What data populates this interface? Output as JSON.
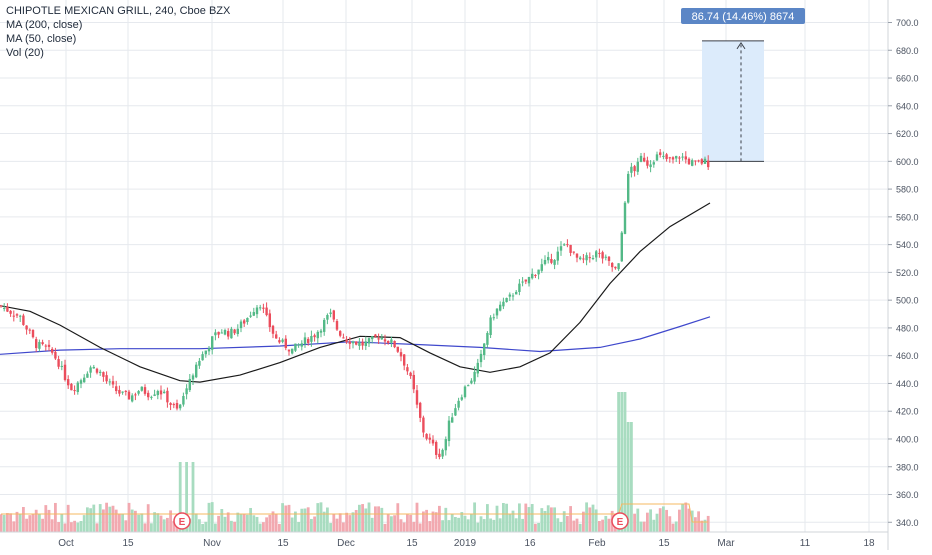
{
  "legend": {
    "title": "CHIPOTLE MEXICAN GRILL, 240, Cboe BZX",
    "ma200": "MA (200, close)",
    "ma50": "MA (50, close)",
    "vol": "Vol (20)"
  },
  "measure_label": "86.74 (14.46%) 8674",
  "earnings_marker": "E",
  "colors": {
    "up": "#53b987",
    "down": "#eb4d5c",
    "vol_up": "#a8dcc0",
    "vol_down": "#f2a9b0",
    "ma200": "#3f48cc",
    "ma50": "#1a1a1a",
    "vol_ma": "#f4b860",
    "measure_fill": "#dcebfb",
    "measure_label_bg": "#5b86c6",
    "grid": "#e6e9ee",
    "axis_text": "#4a5260"
  },
  "chart_data": {
    "type": "candlestick",
    "symbol": "CHIPOTLE MEXICAN GRILL",
    "interval": "240",
    "exchange": "Cboe BZX",
    "y_axis": {
      "ticks": [
        340,
        360,
        380,
        400,
        420,
        440,
        460,
        480,
        500,
        520,
        540,
        560,
        580,
        600,
        620,
        640,
        660,
        680,
        700
      ],
      "ylim": [
        333,
        709
      ]
    },
    "x_axis": {
      "ticks": [
        "Oct",
        "15",
        "Nov",
        "15",
        "Dec",
        "15",
        "2019",
        "16",
        "Feb",
        "15",
        "Mar",
        "11",
        "18"
      ]
    },
    "price_path": [
      [
        0,
        496
      ],
      [
        10,
        492
      ],
      [
        20,
        488
      ],
      [
        28,
        478
      ],
      [
        36,
        468
      ],
      [
        44,
        466
      ],
      [
        52,
        462
      ],
      [
        58,
        456
      ],
      [
        64,
        446
      ],
      [
        72,
        436
      ],
      [
        82,
        444
      ],
      [
        90,
        452
      ],
      [
        98,
        450
      ],
      [
        106,
        442
      ],
      [
        114,
        436
      ],
      [
        122,
        432
      ],
      [
        130,
        430
      ],
      [
        140,
        436
      ],
      [
        150,
        432
      ],
      [
        158,
        436
      ],
      [
        166,
        430
      ],
      [
        172,
        424
      ],
      [
        178,
        420
      ],
      [
        184,
        432
      ],
      [
        190,
        444
      ],
      [
        198,
        456
      ],
      [
        206,
        464
      ],
      [
        214,
        474
      ],
      [
        222,
        478
      ],
      [
        230,
        476
      ],
      [
        238,
        480
      ],
      [
        246,
        486
      ],
      [
        254,
        494
      ],
      [
        260,
        498
      ],
      [
        268,
        484
      ],
      [
        276,
        472
      ],
      [
        284,
        468
      ],
      [
        292,
        464
      ],
      [
        300,
        468
      ],
      [
        308,
        472
      ],
      [
        316,
        476
      ],
      [
        324,
        484
      ],
      [
        330,
        490
      ],
      [
        338,
        478
      ],
      [
        346,
        472
      ],
      [
        354,
        470
      ],
      [
        362,
        468
      ],
      [
        370,
        470
      ],
      [
        378,
        474
      ],
      [
        386,
        472
      ],
      [
        394,
        468
      ],
      [
        400,
        462
      ],
      [
        406,
        452
      ],
      [
        412,
        440
      ],
      [
        418,
        420
      ],
      [
        424,
        404
      ],
      [
        432,
        396
      ],
      [
        438,
        388
      ],
      [
        444,
        394
      ],
      [
        450,
        414
      ],
      [
        458,
        428
      ],
      [
        466,
        438
      ],
      [
        474,
        446
      ],
      [
        480,
        456
      ],
      [
        486,
        474
      ],
      [
        492,
        488
      ],
      [
        500,
        496
      ],
      [
        508,
        500
      ],
      [
        516,
        508
      ],
      [
        524,
        512
      ],
      [
        532,
        518
      ],
      [
        540,
        524
      ],
      [
        548,
        528
      ],
      [
        556,
        532
      ],
      [
        562,
        538
      ],
      [
        568,
        540
      ],
      [
        574,
        532
      ],
      [
        580,
        528
      ],
      [
        588,
        530
      ],
      [
        596,
        534
      ],
      [
        604,
        530
      ],
      [
        612,
        524
      ],
      [
        618,
        520
      ],
      [
        622,
        550
      ],
      [
        626,
        580
      ],
      [
        630,
        596
      ],
      [
        636,
        594
      ],
      [
        642,
        604
      ],
      [
        648,
        598
      ],
      [
        656,
        604
      ],
      [
        664,
        602
      ],
      [
        672,
        600
      ],
      [
        680,
        604
      ],
      [
        688,
        600
      ],
      [
        696,
        598
      ],
      [
        704,
        600
      ],
      [
        710,
        598
      ]
    ],
    "ma200_path": [
      [
        0,
        461
      ],
      [
        60,
        464
      ],
      [
        120,
        465
      ],
      [
        200,
        465
      ],
      [
        280,
        467
      ],
      [
        350,
        470
      ],
      [
        420,
        468
      ],
      [
        480,
        466
      ],
      [
        540,
        463
      ],
      [
        600,
        466
      ],
      [
        640,
        472
      ],
      [
        680,
        481
      ],
      [
        710,
        488
      ]
    ],
    "ma50_path": [
      [
        0,
        496
      ],
      [
        30,
        492
      ],
      [
        60,
        482
      ],
      [
        100,
        466
      ],
      [
        140,
        452
      ],
      [
        180,
        442
      ],
      [
        200,
        441
      ],
      [
        240,
        446
      ],
      [
        280,
        455
      ],
      [
        320,
        466
      ],
      [
        360,
        474
      ],
      [
        400,
        473
      ],
      [
        430,
        462
      ],
      [
        460,
        452
      ],
      [
        490,
        448
      ],
      [
        520,
        452
      ],
      [
        550,
        462
      ],
      [
        580,
        484
      ],
      [
        610,
        512
      ],
      [
        640,
        535
      ],
      [
        670,
        553
      ],
      [
        710,
        570
      ]
    ],
    "measure": {
      "from": 600,
      "to": 686.74,
      "change": 86.74,
      "percent": 14.46,
      "bars": 8674
    },
    "volume_note": "Volume histogram with 20-period MA at chart bottom; spikes near the Feb earnings marker"
  }
}
